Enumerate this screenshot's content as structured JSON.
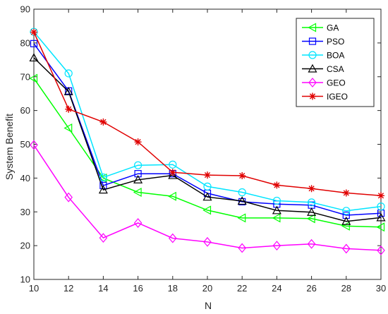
{
  "chart_data": {
    "type": "line",
    "title": "",
    "xlabel": "N",
    "ylabel": "System Benefit",
    "x": [
      10,
      12,
      14,
      16,
      18,
      20,
      22,
      24,
      26,
      28,
      30
    ],
    "xlim": [
      10,
      30
    ],
    "ylim": [
      10,
      90
    ],
    "xticks": [
      10,
      12,
      14,
      16,
      18,
      20,
      22,
      24,
      26,
      28,
      30
    ],
    "yticks": [
      10,
      20,
      30,
      40,
      50,
      60,
      70,
      80,
      90
    ],
    "grid": false,
    "legend_position": "top-right",
    "series": [
      {
        "name": "GA",
        "color": "#00ff00",
        "marker": "triangle-left",
        "values": [
          69.5,
          54.8,
          40.0,
          35.8,
          34.6,
          30.5,
          28.2,
          28.2,
          28.0,
          25.8,
          25.5
        ]
      },
      {
        "name": "PSO",
        "color": "#0000ff",
        "marker": "square",
        "values": [
          79.8,
          65.8,
          37.8,
          41.3,
          41.3,
          35.5,
          33.0,
          32.3,
          32.0,
          29.0,
          29.6
        ]
      },
      {
        "name": "BOA",
        "color": "#00e5ff",
        "marker": "circle",
        "values": [
          83.3,
          71.0,
          40.2,
          43.8,
          44.0,
          37.5,
          35.8,
          33.3,
          32.8,
          30.3,
          31.6
        ]
      },
      {
        "name": "CSA",
        "color": "#000000",
        "marker": "triangle-up",
        "values": [
          75.6,
          65.6,
          36.5,
          39.5,
          40.8,
          34.4,
          33.2,
          30.4,
          29.9,
          27.2,
          28.3
        ]
      },
      {
        "name": "GEO",
        "color": "#ff00ff",
        "marker": "diamond",
        "values": [
          49.8,
          34.3,
          22.3,
          26.7,
          22.2,
          21.1,
          19.3,
          20.0,
          20.5,
          19.1,
          18.6
        ]
      },
      {
        "name": "IGEO",
        "color": "#e00000",
        "marker": "asterisk",
        "values": [
          83.2,
          60.4,
          56.6,
          50.7,
          41.7,
          40.9,
          40.7,
          37.9,
          36.9,
          35.6,
          34.8
        ]
      }
    ]
  }
}
